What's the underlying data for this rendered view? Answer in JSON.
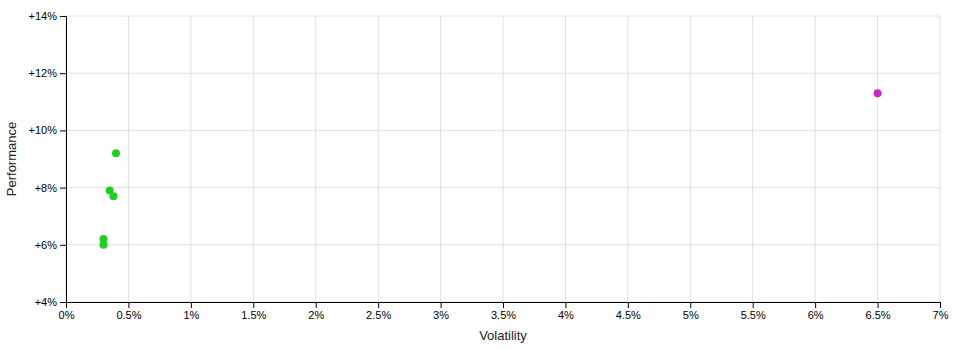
{
  "chart_data": {
    "type": "scatter",
    "xlabel": "Volatility",
    "ylabel": "Performance",
    "xlim": [
      0,
      0.07
    ],
    "ylim": [
      0.04,
      0.14
    ],
    "xticks": [
      {
        "value": 0.0,
        "label": "0%"
      },
      {
        "value": 0.005,
        "label": "0.5%"
      },
      {
        "value": 0.01,
        "label": "1%"
      },
      {
        "value": 0.015,
        "label": "1.5%"
      },
      {
        "value": 0.02,
        "label": "2%"
      },
      {
        "value": 0.025,
        "label": "2.5%"
      },
      {
        "value": 0.03,
        "label": "3%"
      },
      {
        "value": 0.035,
        "label": "3.5%"
      },
      {
        "value": 0.04,
        "label": "4%"
      },
      {
        "value": 0.045,
        "label": "4.5%"
      },
      {
        "value": 0.05,
        "label": "5%"
      },
      {
        "value": 0.055,
        "label": "5.5%"
      },
      {
        "value": 0.06,
        "label": "6%"
      },
      {
        "value": 0.065,
        "label": "6.5%"
      },
      {
        "value": 0.07,
        "label": "7%"
      }
    ],
    "yticks": [
      {
        "value": 0.04,
        "label": "+4%"
      },
      {
        "value": 0.06,
        "label": "+6%"
      },
      {
        "value": 0.08,
        "label": "+8%"
      },
      {
        "value": 0.1,
        "label": "+10%"
      },
      {
        "value": 0.12,
        "label": "+12%"
      },
      {
        "value": 0.14,
        "label": "+14%"
      }
    ],
    "grid": true,
    "series": [
      {
        "color": "#22cc22",
        "x": [
          0.003,
          0.003,
          0.0035,
          0.0038,
          0.004
        ],
        "values": [
          0.062,
          0.06,
          0.079,
          0.077,
          0.092
        ]
      },
      {
        "color": "#cc22cc",
        "x": [
          0.065
        ],
        "values": [
          0.113
        ]
      }
    ]
  }
}
